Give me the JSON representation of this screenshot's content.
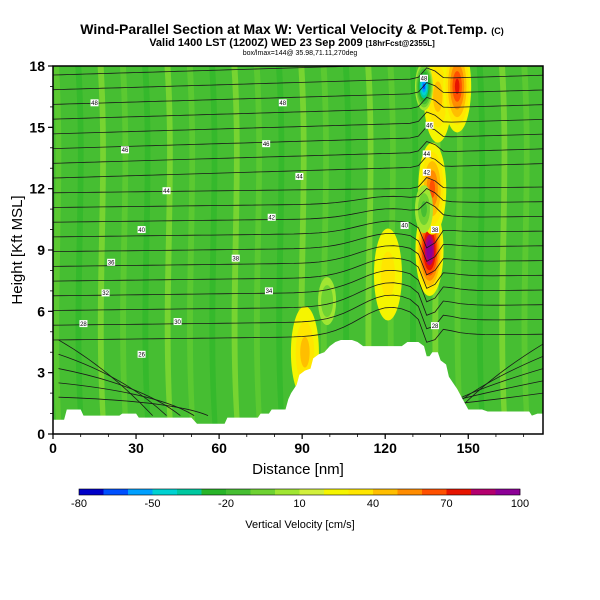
{
  "chart_data": {
    "type": "heatmap",
    "title": "Wind-Parallel Section at Max W: Vertical Velocity & Pot.Temp.",
    "title_mark": "(C)",
    "subtitle": "Valid 1400 LST (1200Z) WED 23 Sep 2009",
    "subtitle_note": "[18hrFcst@2355L]",
    "caption": "box/lmax=144@ 35.98,71.11,270deg",
    "xlabel": "Distance [nm]",
    "ylabel": "Height [Kft MSL]",
    "xlim": [
      0,
      177
    ],
    "ylim": [
      0,
      18
    ],
    "xticks": [
      0,
      30,
      60,
      90,
      120,
      150
    ],
    "yticks": [
      0,
      3,
      6,
      9,
      12,
      15,
      18
    ],
    "terrain": [
      [
        0,
        0.7
      ],
      [
        4,
        0.7
      ],
      [
        5,
        1.2
      ],
      [
        10,
        1.2
      ],
      [
        11,
        0.9
      ],
      [
        24,
        0.9
      ],
      [
        25,
        1.0
      ],
      [
        30,
        1.0
      ],
      [
        31,
        0.8
      ],
      [
        50,
        0.8
      ],
      [
        52,
        0.5
      ],
      [
        62,
        0.5
      ],
      [
        63,
        0.8
      ],
      [
        74,
        0.8
      ],
      [
        75,
        1.0
      ],
      [
        78,
        1.0
      ],
      [
        79,
        1.2
      ],
      [
        84,
        1.2
      ],
      [
        85,
        1.7
      ],
      [
        86,
        2.0
      ],
      [
        88,
        2.4
      ],
      [
        89,
        2.9
      ],
      [
        91,
        3.1
      ],
      [
        93,
        3.2
      ],
      [
        94,
        3.7
      ],
      [
        96,
        3.9
      ],
      [
        98,
        4.0
      ],
      [
        100,
        4.3
      ],
      [
        102,
        4.5
      ],
      [
        104,
        4.6
      ],
      [
        108,
        4.6
      ],
      [
        110,
        4.5
      ],
      [
        112,
        4.3
      ],
      [
        124,
        4.3
      ],
      [
        126,
        4.3
      ],
      [
        128,
        4.5
      ],
      [
        132,
        4.5
      ],
      [
        134,
        4.3
      ],
      [
        135,
        3.8
      ],
      [
        136,
        3.8
      ],
      [
        137,
        4.0
      ],
      [
        139,
        4.0
      ],
      [
        140,
        3.6
      ],
      [
        142,
        3.4
      ],
      [
        143,
        2.8
      ],
      [
        144,
        2.6
      ],
      [
        146,
        2.2
      ],
      [
        148,
        1.7
      ],
      [
        150,
        1.2
      ],
      [
        155,
        1.2
      ],
      [
        157,
        1.1
      ],
      [
        172,
        1.1
      ],
      [
        173,
        0.9
      ],
      [
        175,
        1.0
      ],
      [
        177,
        1.0
      ]
    ],
    "updrafts": [
      {
        "x": 136,
        "y": 9.0,
        "value": 100
      },
      {
        "x": 137,
        "y": 12.0,
        "value": 60
      },
      {
        "x": 139,
        "y": 16.5,
        "value": 40
      },
      {
        "x": 146,
        "y": 17.0,
        "value": 70
      },
      {
        "x": 121,
        "y": 7.8,
        "value": 30
      },
      {
        "x": 91,
        "y": 4.0,
        "value": 40
      }
    ],
    "downdrafts": [
      {
        "x": 134,
        "y": 17.0,
        "value": -70
      },
      {
        "x": 134,
        "y": 11.0,
        "value": -20
      },
      {
        "x": 99,
        "y": 6.5,
        "value": -15
      }
    ],
    "isentrope_labels": [
      {
        "x": 15,
        "y": 16.2,
        "text": "48"
      },
      {
        "x": 83,
        "y": 16.2,
        "text": "48"
      },
      {
        "x": 26,
        "y": 13.9,
        "text": "46"
      },
      {
        "x": 77,
        "y": 14.2,
        "text": "46"
      },
      {
        "x": 41,
        "y": 11.9,
        "text": "44"
      },
      {
        "x": 89,
        "y": 12.6,
        "text": "44"
      },
      {
        "x": 79,
        "y": 10.6,
        "text": "42"
      },
      {
        "x": 32,
        "y": 10.0,
        "text": "40"
      },
      {
        "x": 66,
        "y": 8.6,
        "text": "38"
      },
      {
        "x": 21,
        "y": 8.4,
        "text": "36"
      },
      {
        "x": 78,
        "y": 7.0,
        "text": "34"
      },
      {
        "x": 19,
        "y": 6.9,
        "text": "32"
      },
      {
        "x": 45,
        "y": 5.5,
        "text": "30"
      },
      {
        "x": 11,
        "y": 5.4,
        "text": "28"
      },
      {
        "x": 32,
        "y": 3.9,
        "text": "26"
      },
      {
        "x": 134,
        "y": 17.4,
        "text": "48"
      },
      {
        "x": 136,
        "y": 15.1,
        "text": "46"
      },
      {
        "x": 135,
        "y": 13.7,
        "text": "44"
      },
      {
        "x": 135,
        "y": 12.8,
        "text": "42"
      },
      {
        "x": 127,
        "y": 10.2,
        "text": "40"
      },
      {
        "x": 138,
        "y": 10.0,
        "text": "38"
      },
      {
        "x": 138,
        "y": 5.3,
        "text": "28"
      }
    ],
    "colorbar": {
      "title": "Vertical Velocity [cm/s]",
      "ticks": [
        -80,
        -50,
        -20,
        10,
        40,
        70,
        100
      ],
      "colors": [
        "#0000c8",
        "#0050ff",
        "#00a0ff",
        "#00d2d2",
        "#00c8a0",
        "#28b428",
        "#46be32",
        "#6ed232",
        "#a0e632",
        "#d2f03c",
        "#f5f500",
        "#ffe600",
        "#ffbe00",
        "#ff8c00",
        "#ff5000",
        "#e61400",
        "#b4006e",
        "#8c0096"
      ]
    }
  }
}
